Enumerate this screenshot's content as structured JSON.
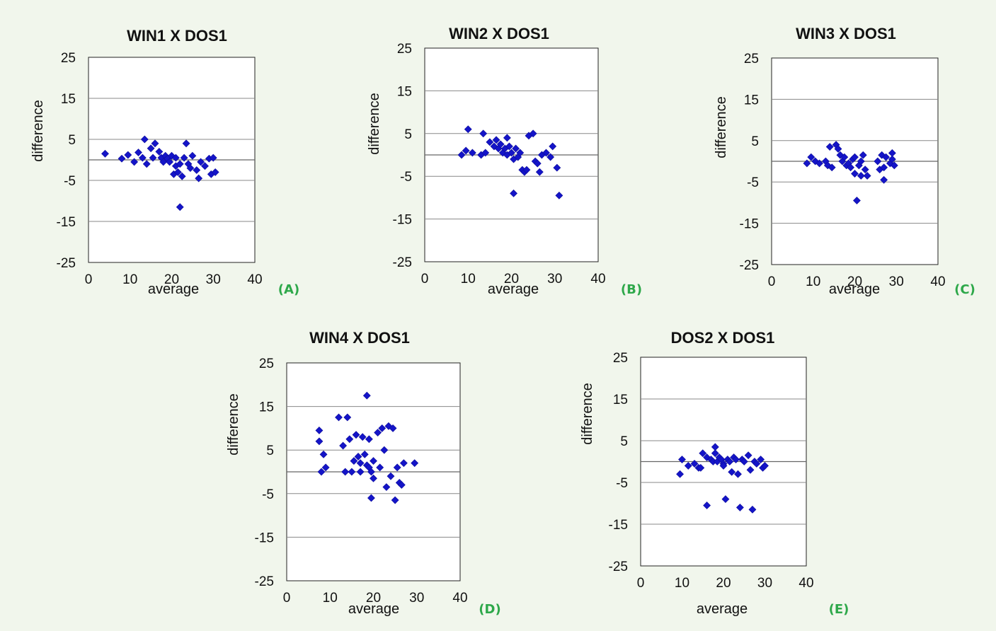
{
  "chart_data": [
    {
      "type": "scatter",
      "panel_label": "(A)",
      "title": "WIN1 X DOS1",
      "xlabel": "average",
      "ylabel": "difference",
      "xlim": [
        0,
        40
      ],
      "ylim": [
        -25,
        25
      ],
      "xticks": [
        "0",
        "10",
        "20",
        "30",
        "40"
      ],
      "yticks": [
        "25",
        "15",
        "5",
        "-5",
        "-15",
        "-25"
      ],
      "gridlines_y": [
        25,
        15,
        5,
        0,
        -5,
        -15,
        -25
      ],
      "marker_color": "#1414c8",
      "points": [
        [
          4,
          1.5
        ],
        [
          8,
          0.3
        ],
        [
          9.5,
          1.2
        ],
        [
          11,
          -0.5
        ],
        [
          12,
          1.8
        ],
        [
          13,
          0.5
        ],
        [
          13.5,
          5
        ],
        [
          14,
          -1
        ],
        [
          15,
          2.8
        ],
        [
          15.5,
          0.5
        ],
        [
          16,
          4
        ],
        [
          17,
          2
        ],
        [
          17.5,
          0.5
        ],
        [
          18,
          -0.5
        ],
        [
          18.5,
          1
        ],
        [
          19,
          0.3
        ],
        [
          19.5,
          -0.5
        ],
        [
          20,
          1
        ],
        [
          20.5,
          -3.5
        ],
        [
          21,
          -1.5
        ],
        [
          21,
          0.5
        ],
        [
          21.5,
          -3
        ],
        [
          22,
          -1
        ],
        [
          22.5,
          -4
        ],
        [
          22,
          -11.5
        ],
        [
          23,
          0.5
        ],
        [
          23.5,
          4
        ],
        [
          24,
          -1
        ],
        [
          24.5,
          -2
        ],
        [
          25,
          1
        ],
        [
          26,
          -2.5
        ],
        [
          26.5,
          -4.5
        ],
        [
          27,
          -0.5
        ],
        [
          28,
          -1.5
        ],
        [
          29,
          0.3
        ],
        [
          29.5,
          -3.5
        ],
        [
          30,
          0.5
        ],
        [
          30.5,
          -3
        ]
      ]
    },
    {
      "type": "scatter",
      "panel_label": "(B)",
      "title": "WIN2 X DOS1",
      "xlabel": "average",
      "ylabel": "difference",
      "xlim": [
        0,
        40
      ],
      "ylim": [
        -25,
        25
      ],
      "xticks": [
        "0",
        "10",
        "20",
        "30",
        "40"
      ],
      "yticks": [
        "25",
        "15",
        "5",
        "-5",
        "-15",
        "-25"
      ],
      "gridlines_y": [
        25,
        15,
        5,
        0,
        -5,
        -15,
        -25
      ],
      "marker_color": "#1414c8",
      "points": [
        [
          8.5,
          0
        ],
        [
          9.5,
          1
        ],
        [
          10,
          6
        ],
        [
          11,
          0.5
        ],
        [
          13,
          0
        ],
        [
          13.5,
          5
        ],
        [
          14,
          0.5
        ],
        [
          15,
          3
        ],
        [
          16,
          2
        ],
        [
          16.5,
          3.5
        ],
        [
          17,
          1.5
        ],
        [
          17.5,
          2.5
        ],
        [
          18,
          0.5
        ],
        [
          18.5,
          1.5
        ],
        [
          19,
          4
        ],
        [
          19,
          0
        ],
        [
          19.5,
          2
        ],
        [
          20,
          0.5
        ],
        [
          20.5,
          -1
        ],
        [
          20.5,
          -9
        ],
        [
          21,
          1.5
        ],
        [
          21.5,
          -0.5
        ],
        [
          22,
          0.5
        ],
        [
          22.5,
          -3.5
        ],
        [
          23,
          -4
        ],
        [
          23.5,
          -3.5
        ],
        [
          24,
          4.5
        ],
        [
          25,
          5
        ],
        [
          25.5,
          -1.5
        ],
        [
          26,
          -2
        ],
        [
          26.5,
          -4
        ],
        [
          27,
          0
        ],
        [
          28,
          0.5
        ],
        [
          29,
          -0.5
        ],
        [
          29.5,
          2
        ],
        [
          30.5,
          -3
        ],
        [
          31,
          -9.5
        ]
      ]
    },
    {
      "type": "scatter",
      "panel_label": "(C)",
      "title": "WIN3 X DOS1",
      "xlabel": "average",
      "ylabel": "difference",
      "xlim": [
        0,
        40
      ],
      "ylim": [
        -25,
        25
      ],
      "xticks": [
        "0",
        "10",
        "20",
        "30",
        "40"
      ],
      "yticks": [
        "25",
        "15",
        "5",
        "-5",
        "-15",
        "-25"
      ],
      "gridlines_y": [
        25,
        15,
        5,
        0,
        -5,
        -15,
        -25
      ],
      "marker_color": "#1414c8",
      "points": [
        [
          8.5,
          -0.5
        ],
        [
          9.5,
          1
        ],
        [
          10.5,
          0
        ],
        [
          11.5,
          -0.5
        ],
        [
          13,
          0
        ],
        [
          13.5,
          -1
        ],
        [
          14,
          3.5
        ],
        [
          14.5,
          -1.5
        ],
        [
          15.5,
          4
        ],
        [
          16,
          3
        ],
        [
          16.5,
          1.5
        ],
        [
          17,
          0
        ],
        [
          17.5,
          1
        ],
        [
          18,
          -1
        ],
        [
          18.5,
          -0.5
        ],
        [
          19,
          -1.5
        ],
        [
          19.5,
          0.5
        ],
        [
          20,
          1
        ],
        [
          20,
          -3
        ],
        [
          20.5,
          -9.5
        ],
        [
          21,
          -1
        ],
        [
          21.5,
          0
        ],
        [
          21.5,
          -3.5
        ],
        [
          22,
          1.5
        ],
        [
          22.5,
          -2
        ],
        [
          23,
          -3.5
        ],
        [
          25.5,
          0
        ],
        [
          26,
          -2
        ],
        [
          26.5,
          1.5
        ],
        [
          27,
          -4.5
        ],
        [
          27,
          -1.5
        ],
        [
          27.5,
          1
        ],
        [
          28.5,
          -0.5
        ],
        [
          29,
          2
        ],
        [
          29,
          0.5
        ],
        [
          29.5,
          -1
        ]
      ]
    },
    {
      "type": "scatter",
      "panel_label": "(D)",
      "title": "WIN4 X DOS1",
      "xlabel": "average",
      "ylabel": "difference",
      "xlim": [
        0,
        40
      ],
      "ylim": [
        -25,
        25
      ],
      "xticks": [
        "0",
        "10",
        "20",
        "30",
        "40"
      ],
      "yticks": [
        "25",
        "15",
        "5",
        "-5",
        "-15",
        "-25"
      ],
      "gridlines_y": [
        25,
        15,
        5,
        0,
        -5,
        -15,
        -25
      ],
      "marker_color": "#1414c8",
      "points": [
        [
          7.5,
          9.5
        ],
        [
          7.5,
          7
        ],
        [
          8,
          0
        ],
        [
          8.5,
          4
        ],
        [
          9,
          1
        ],
        [
          12,
          12.5
        ],
        [
          13,
          6
        ],
        [
          13.5,
          0
        ],
        [
          14,
          12.5
        ],
        [
          14.5,
          7.5
        ],
        [
          15,
          0
        ],
        [
          15.5,
          2.5
        ],
        [
          16,
          8.5
        ],
        [
          16.5,
          3.5
        ],
        [
          17,
          2
        ],
        [
          17,
          0
        ],
        [
          17.5,
          8
        ],
        [
          18,
          4
        ],
        [
          18.5,
          1.5
        ],
        [
          18.5,
          17.5
        ],
        [
          19,
          7.5
        ],
        [
          19,
          1
        ],
        [
          19.5,
          0
        ],
        [
          19.5,
          -6
        ],
        [
          20,
          2.5
        ],
        [
          20,
          -1.5
        ],
        [
          21,
          9
        ],
        [
          21.5,
          1
        ],
        [
          22,
          10
        ],
        [
          22.5,
          5
        ],
        [
          23,
          -3.5
        ],
        [
          23.5,
          10.5
        ],
        [
          24,
          -1
        ],
        [
          24.5,
          10
        ],
        [
          25,
          -6.5
        ],
        [
          25.5,
          1
        ],
        [
          26,
          -2.5
        ],
        [
          26.5,
          -3
        ],
        [
          27,
          2
        ],
        [
          29.5,
          2
        ]
      ]
    },
    {
      "type": "scatter",
      "panel_label": "(E)",
      "title": "DOS2 X DOS1",
      "xlabel": "average",
      "ylabel": "difference",
      "xlim": [
        0,
        40
      ],
      "ylim": [
        -25,
        25
      ],
      "xticks": [
        "0",
        "10",
        "20",
        "30",
        "40"
      ],
      "yticks": [
        "25",
        "15",
        "5",
        "-5",
        "-15",
        "-25"
      ],
      "gridlines_y": [
        25,
        15,
        5,
        0,
        -5,
        -15,
        -25
      ],
      "marker_color": "#1414c8",
      "points": [
        [
          9.5,
          -3
        ],
        [
          10,
          0.5
        ],
        [
          11.5,
          -1
        ],
        [
          13,
          -0.5
        ],
        [
          14,
          -1.5
        ],
        [
          14.5,
          -1.5
        ],
        [
          15,
          2
        ],
        [
          16,
          -10.5
        ],
        [
          16,
          1
        ],
        [
          17,
          0.5
        ],
        [
          17.5,
          0
        ],
        [
          18,
          3.5
        ],
        [
          18,
          2
        ],
        [
          18.5,
          0
        ],
        [
          19,
          1
        ],
        [
          19.5,
          0.5
        ],
        [
          20,
          -0.5
        ],
        [
          20,
          -1
        ],
        [
          20.5,
          -9
        ],
        [
          21,
          0.5
        ],
        [
          21.5,
          0
        ],
        [
          22,
          -2.5
        ],
        [
          22.5,
          1
        ],
        [
          23,
          0.5
        ],
        [
          23.5,
          -3
        ],
        [
          24,
          -11
        ],
        [
          24.5,
          0.5
        ],
        [
          25,
          0
        ],
        [
          26,
          1.5
        ],
        [
          26.5,
          -2
        ],
        [
          27,
          -11.5
        ],
        [
          27.5,
          0
        ],
        [
          28,
          -0.5
        ],
        [
          29,
          0.5
        ],
        [
          29.5,
          -1.5
        ],
        [
          30,
          -1
        ]
      ]
    }
  ]
}
